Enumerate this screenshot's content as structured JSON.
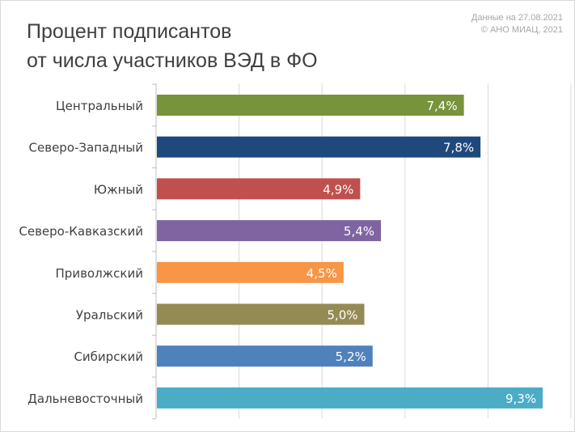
{
  "header": {
    "title_line1": "Процент подписантов",
    "title_line2": "от числа участников ВЭД в ФО",
    "source_line1": "Данные на 27.08.2021",
    "source_line2": "© АНО МИАЦ, 2021"
  },
  "chart_data": {
    "type": "bar",
    "orientation": "horizontal",
    "title": "Процент подписантов от числа участников ВЭД в ФО",
    "categories": [
      "Центральный",
      "Северо-Западный",
      "Южный",
      "Северо-Кавказский",
      "Приволжский",
      "Уральский",
      "Сибирский",
      "Дальневосточный"
    ],
    "values": [
      7.4,
      7.8,
      4.9,
      5.4,
      4.5,
      5.0,
      5.2,
      9.3
    ],
    "value_labels": [
      "7,4%",
      "7,8%",
      "4,9%",
      "5,4%",
      "4,5%",
      "5,0%",
      "5,2%",
      "9,3%"
    ],
    "colors": [
      "#77933c",
      "#1f497d",
      "#c0504d",
      "#8064a2",
      "#f79646",
      "#948a54",
      "#4f81bd",
      "#4bacc6"
    ],
    "xlim": [
      0,
      10
    ],
    "grid": true,
    "xlabel": "",
    "ylabel": ""
  }
}
